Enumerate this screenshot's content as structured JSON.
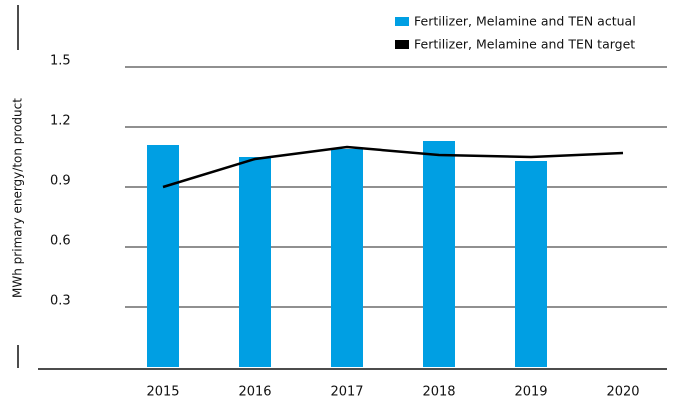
{
  "chart_data": {
    "type": "bar",
    "ylabel": "MWh primary energy/ton product",
    "categories": [
      "2015",
      "2016",
      "2017",
      "2018",
      "2019",
      "2020"
    ],
    "series": [
      {
        "name": "Fertilizer, Melamine and TEN actual",
        "type": "bar",
        "color": "#009fe3",
        "values": [
          1.11,
          1.05,
          1.09,
          1.13,
          1.03,
          null
        ]
      },
      {
        "name": "Fertilizer, Melamine and TEN target",
        "type": "line",
        "color": "#000000",
        "values": [
          0.9,
          1.04,
          1.1,
          1.06,
          1.05,
          1.07
        ]
      }
    ],
    "ylim": [
      0,
      1.5
    ],
    "yticks": [
      0.3,
      0.6,
      0.9,
      1.2,
      1.5
    ],
    "grid": true,
    "legend": "top-right"
  }
}
